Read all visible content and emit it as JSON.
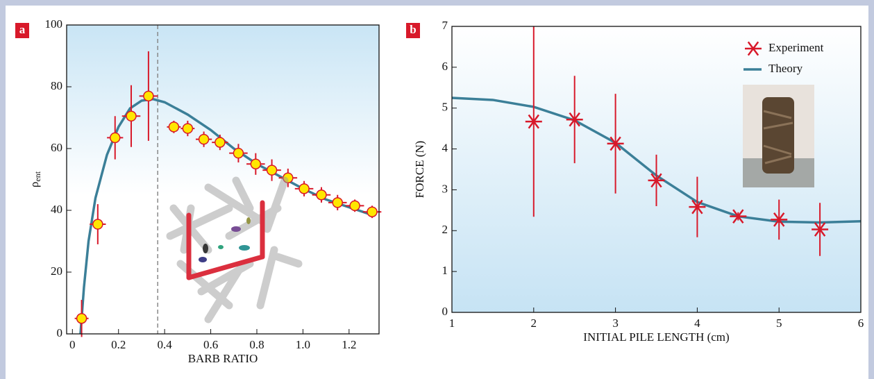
{
  "chart_data": [
    {
      "type": "scatter",
      "panel_label": "a",
      "xlabel": "BARB RATIO",
      "ylabel": "ρ",
      "ylabel_subscript": "ent",
      "xlim": [
        -0.025,
        1.33
      ],
      "ylim": [
        0,
        100
      ],
      "xticks": [
        0,
        0.2,
        0.4,
        0.6,
        0.8,
        {
          "value": 1,
          "label": "1.0"
        },
        1.2
      ],
      "yticks": [
        0,
        20,
        40,
        60,
        80,
        100
      ],
      "vline": 0.37,
      "series": [
        {
          "type": "scatter",
          "marker": "circle",
          "color": "#d8192a",
          "marker_fill": "#ffe600",
          "x": [
            0.04,
            0.11,
            0.185,
            0.255,
            0.33,
            0.44,
            0.5,
            0.57,
            0.64,
            0.72,
            0.795,
            0.865,
            0.935,
            1.005,
            1.08,
            1.15,
            1.225,
            1.3
          ],
          "values": [
            5,
            35.5,
            63.5,
            70.5,
            77,
            67,
            66.5,
            63,
            62,
            58.5,
            55,
            53,
            50.5,
            47,
            45,
            42.5,
            41.5,
            39.5
          ],
          "xerr": [
            0.03,
            0.035,
            0.035,
            0.04,
            0.04,
            0.03,
            0.03,
            0.035,
            0.035,
            0.04,
            0.04,
            0.04,
            0.04,
            0.04,
            0.04,
            0.04,
            0.04,
            0.04
          ],
          "yerr": [
            6,
            6.5,
            7,
            10,
            14.5,
            2,
            2.5,
            2.5,
            2.5,
            3,
            3.5,
            3.5,
            3,
            2.5,
            2.5,
            2.5,
            2,
            2
          ]
        },
        {
          "type": "line",
          "color": "#3b7f98",
          "x": [
            0.035,
            0.05,
            0.07,
            0.1,
            0.15,
            0.2,
            0.25,
            0.3,
            0.35,
            0.4,
            0.5,
            0.6,
            0.7,
            0.8,
            0.9,
            1.0,
            1.1,
            1.2,
            1.3
          ],
          "values": [
            0,
            15,
            30,
            44,
            58,
            67,
            73,
            75.5,
            76,
            75,
            71,
            66,
            60,
            55,
            51,
            47,
            43.5,
            41,
            38.5
          ]
        }
      ]
    },
    {
      "type": "scatter",
      "panel_label": "b",
      "xlabel": "INITIAL PILE LENGTH (cm)",
      "ylabel": "FORCE (N)",
      "xlim": [
        1,
        6
      ],
      "ylim": [
        0,
        7
      ],
      "xticks": [
        1,
        2,
        3,
        4,
        5,
        6
      ],
      "yticks": [
        0,
        1,
        2,
        3,
        4,
        5,
        6,
        7
      ],
      "legend": "upper right",
      "series": [
        {
          "type": "scatter",
          "name": "Experiment",
          "marker": "asterisk",
          "color": "#d8192a",
          "x": [
            2,
            2.5,
            3,
            3.5,
            4,
            4.5,
            5,
            5.5
          ],
          "values": [
            4.67,
            4.72,
            4.13,
            3.23,
            2.58,
            2.35,
            2.27,
            2.03
          ],
          "yerr": [
            2.33,
            1.07,
            1.22,
            0.63,
            0.74,
            0.1,
            0.49,
            0.65
          ]
        },
        {
          "type": "line",
          "name": "Theory",
          "color": "#3b7f98",
          "x": [
            1,
            1.5,
            2,
            2.5,
            3,
            3.5,
            4,
            4.5,
            5,
            5.5,
            6
          ],
          "values": [
            5.25,
            5.2,
            5.03,
            4.7,
            4.15,
            3.35,
            2.7,
            2.35,
            2.22,
            2.2,
            2.23
          ]
        }
      ]
    }
  ]
}
